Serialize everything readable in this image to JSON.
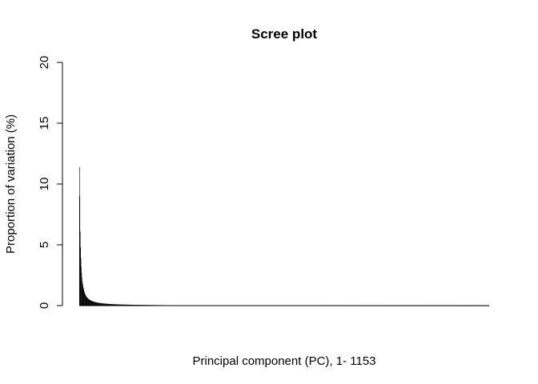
{
  "chart_data": {
    "type": "bar",
    "title": "Scree plot",
    "xlabel": "Principal component (PC), 1- 1153",
    "ylabel": "Proportion of variation (%)",
    "ylim": [
      0,
      20
    ],
    "yticks": [
      0,
      5,
      10,
      15,
      20
    ],
    "n_components": 1153,
    "grid": false,
    "legend": "none",
    "bar_color": "#000000",
    "leading_values": [
      11.4,
      9.0,
      6.1,
      4.8,
      3.9,
      3.2,
      2.7,
      2.3,
      2.0,
      1.8,
      1.6,
      1.45,
      1.3,
      1.2,
      1.1,
      1.02,
      0.95,
      0.88,
      0.82,
      0.77
    ],
    "tail_decay": "gradual decrease from ~0.75% at PC 20 toward ~0% at PC 1153"
  }
}
